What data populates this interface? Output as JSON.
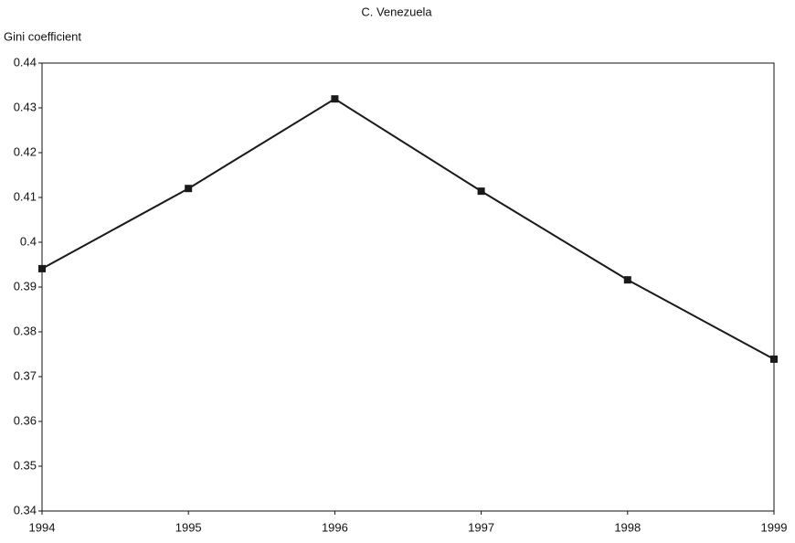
{
  "chart_data": {
    "type": "line",
    "title": "C. Venezuela",
    "y_label": "Gini coefficient",
    "x": [
      1994,
      1995,
      1996,
      1997,
      1998,
      1999
    ],
    "xlim": [
      1994,
      1999
    ],
    "xticks": [
      1994,
      1995,
      1996,
      1997,
      1998,
      1999
    ],
    "ylim": [
      0.34,
      0.44
    ],
    "yticks": [
      0.34,
      0.35,
      0.36,
      0.37,
      0.38,
      0.39,
      0.4,
      0.41,
      0.42,
      0.43,
      0.44
    ],
    "grid": false,
    "series": [
      {
        "color": "#1a1a1a",
        "values": [
          0.3941,
          0.412,
          0.432,
          0.4114,
          0.3916,
          0.3739
        ]
      }
    ]
  }
}
